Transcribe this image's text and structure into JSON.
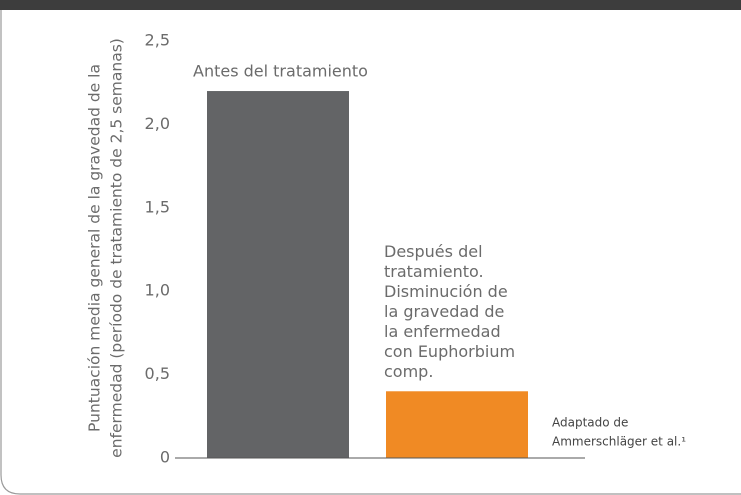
{
  "chart_data": {
    "type": "bar",
    "ylabel": [
      "Puntuación media general de la gravedad de la",
      "enfermedad (período de tratamiento de 2,5 semanas)"
    ],
    "values": [
      2.2,
      0.4
    ],
    "colors": [
      "#636466",
      "#f08a24"
    ],
    "annotations": [
      [
        "Antes del tratamiento"
      ],
      [
        "Después del",
        "tratamiento.",
        "Disminución de",
        "la gravedad de",
        "la enfermedad",
        "con Euphorbium",
        "comp."
      ]
    ],
    "note": [
      "Adaptado de",
      "Ammerschläger et al.¹"
    ],
    "ylim": [
      0,
      2.5
    ],
    "yticks": [
      0,
      {
        "value": 0.5,
        "label": "0,5"
      },
      {
        "value": 1,
        "label": "1,0"
      },
      {
        "value": 1.5,
        "label": "1,5"
      },
      {
        "value": 2,
        "label": "2,0"
      },
      {
        "value": 2.5,
        "label": "2,5"
      }
    ],
    "grid": false
  }
}
